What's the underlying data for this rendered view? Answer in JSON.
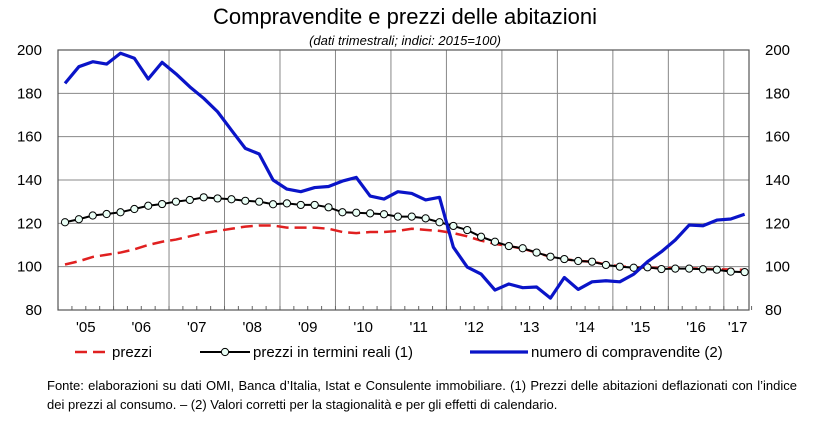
{
  "chart_data": {
    "type": "line",
    "title": "Compravendite e prezzi delle abitazioni",
    "subtitle": "(dati trimestrali; indici: 2015=100)",
    "xlabel": "",
    "ylabel": "",
    "x_start": "2005Q1",
    "x_end": "2017Q2",
    "frequency": "quarterly",
    "x_tick_labels": [
      "'05",
      "'06",
      "'07",
      "'08",
      "'09",
      "'10",
      "'11",
      "'12",
      "'13",
      "'14",
      "'15",
      "'16",
      "'17"
    ],
    "ylim": [
      80,
      200
    ],
    "y_ticks": [
      80,
      100,
      120,
      140,
      160,
      180,
      200
    ],
    "secondary_ylim": [
      80,
      200
    ],
    "grid": true,
    "legend_position": "bottom",
    "series": [
      {
        "name": "prezzi",
        "color": "#e02020",
        "style": "dashed",
        "values": [
          101,
          102.5,
          104.5,
          105.5,
          106.5,
          108,
          110,
          111.5,
          112.5,
          114,
          115.5,
          116.5,
          117.5,
          118.5,
          119,
          119,
          118,
          118,
          118,
          117.5,
          116,
          115.5,
          116,
          116,
          116.5,
          117.5,
          117,
          116.5,
          115.5,
          114,
          112,
          110.5,
          109.5,
          108.3,
          106.5,
          104.5,
          103.5,
          102.7,
          102.3,
          101,
          100.2,
          99.6,
          99.6,
          99.3,
          99.3,
          99.2,
          99,
          98.8,
          98.7,
          98.5
        ]
      },
      {
        "name": "prezzi in termini reali (1)",
        "color": "#000000",
        "style": "line-circles",
        "values": [
          120.5,
          121.9,
          123.6,
          124.3,
          125.1,
          126.6,
          128.1,
          128.9,
          130,
          130.8,
          132,
          131.5,
          131.1,
          130.4,
          130,
          128.8,
          129.2,
          128.5,
          128.5,
          127.4,
          125.1,
          124.9,
          124.6,
          124.2,
          123.1,
          123.1,
          122.3,
          120.5,
          118.8,
          116.9,
          113.8,
          111.5,
          109.5,
          108.5,
          106.5,
          104.6,
          103.5,
          102.6,
          102.3,
          100.8,
          100,
          99.5,
          99.7,
          98.9,
          99.1,
          99.1,
          98.8,
          98.6,
          97.7,
          97.5
        ]
      },
      {
        "name": "numero di compravendite (2)",
        "color": "#0a14c8",
        "style": "solid",
        "values": [
          184.6,
          192.3,
          194.6,
          193.5,
          198.5,
          196.2,
          186.6,
          194.3,
          189,
          183,
          177.7,
          171.5,
          163,
          154.6,
          152,
          140,
          135.8,
          134.6,
          136.5,
          137,
          139.5,
          141.2,
          132.6,
          131.2,
          134.6,
          133.8,
          130.8,
          132,
          109,
          99.8,
          96.6,
          89.2,
          92,
          90.3,
          90.6,
          85.5,
          95,
          89.5,
          93,
          93.5,
          93,
          96.5,
          102.3,
          106.9,
          112.3,
          119.2,
          118.9,
          121.5,
          122,
          124.2
        ]
      }
    ]
  },
  "footnote": "Fonte: elaborazioni su dati OMI, Banca d’Italia, Istat e Consulente immobiliare. (1) Prezzi delle abitazioni deflazionati con l’indice dei prezzi al consumo. – (2) Valori corretti per la stagionalità e per gli effetti di calendario."
}
